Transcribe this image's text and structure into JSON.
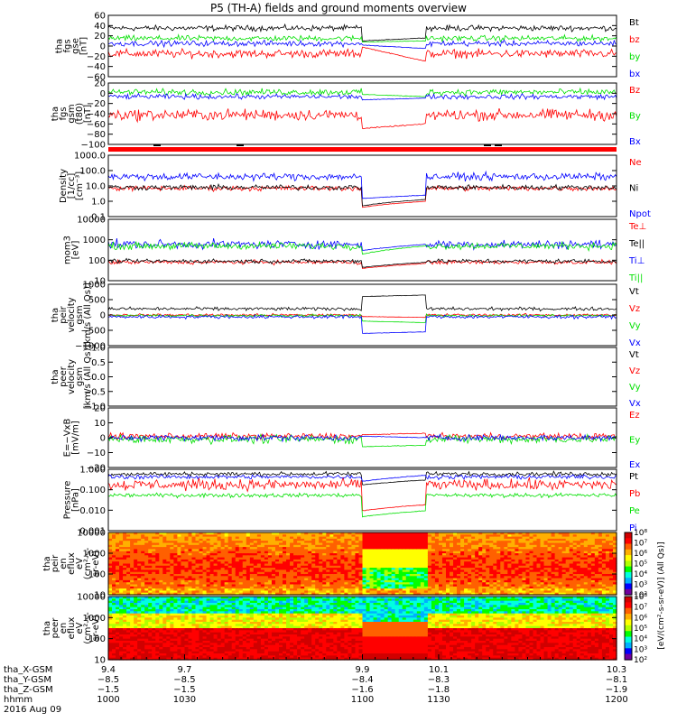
{
  "title": "P5 (TH-A) fields and ground moments overview",
  "date_label": "2016 Aug 09",
  "colors": {
    "black": "#000000",
    "red": "#ff0000",
    "green": "#00e000",
    "blue": "#0000ff"
  },
  "chart_data": [
    {
      "type": "line",
      "ylabel": [
        "tha",
        "fgs",
        "gse",
        "[nT]"
      ],
      "yticks": [
        "60",
        "40",
        "20",
        "0",
        "−20",
        "−40",
        "−60"
      ],
      "ylim": [
        -60,
        60
      ],
      "log": false,
      "series": [
        {
          "name": "Bt",
          "color": "black",
          "level": 35,
          "noise": 8,
          "calm": [
            10,
            16
          ]
        },
        {
          "name": "bz",
          "color": "red",
          "level": -15,
          "noise": 12,
          "calm": [
            -2,
            -30
          ]
        },
        {
          "name": "by",
          "color": "green",
          "level": 15,
          "noise": 8,
          "calm": [
            8,
            10
          ]
        },
        {
          "name": "bx",
          "color": "blue",
          "level": 5,
          "noise": 8,
          "calm": [
            2,
            -5
          ]
        }
      ]
    },
    {
      "type": "line",
      "ylabel": [
        "tha",
        "fgs",
        "gsm",
        "(t80)",
        "[nT]"
      ],
      "yticks": [
        "20",
        "0",
        "−20",
        "−40",
        "−60",
        "−80",
        "−100"
      ],
      "ylim": [
        -110,
        25
      ],
      "log": false,
      "series": [
        {
          "name": "Bz",
          "color": "red",
          "level": -45,
          "noise": 18,
          "calm": [
            -75,
            -65
          ]
        },
        {
          "name": "By",
          "color": "green",
          "level": 5,
          "noise": 10,
          "calm": [
            0,
            -5
          ]
        },
        {
          "name": "Bx",
          "color": "blue",
          "level": -5,
          "noise": 8,
          "calm": [
            -12,
            -8
          ]
        }
      ]
    },
    {
      "type": "line",
      "ylabel": [
        "Density",
        "[1/cc]",
        "[cm⁻³]"
      ],
      "yticks": [
        "1000.0",
        "100.0",
        "10.0",
        "1.0",
        "0.1"
      ],
      "ylim": [
        0.1,
        1000
      ],
      "log": true,
      "series": [
        {
          "name": "Ne",
          "color": "red",
          "level": 7,
          "noise": 0.25,
          "calm": [
            0.4,
            1.0
          ]
        },
        {
          "name": "Ni",
          "color": "black",
          "level": 8,
          "noise": 0.25,
          "calm": [
            0.5,
            1.3
          ]
        },
        {
          "name": "Npot",
          "color": "blue",
          "level": 40,
          "noise": 0.35,
          "calm": [
            1.5,
            2.5
          ]
        }
      ]
    },
    {
      "type": "line",
      "ylabel": [
        "mom3",
        "[eV]"
      ],
      "yticks": [
        "10000",
        "1000",
        "100",
        "10"
      ],
      "ylim": [
        10,
        10000
      ],
      "log": true,
      "series": [
        {
          "name": "Te⊥",
          "color": "red",
          "level": 80,
          "noise": 0.15,
          "calm": [
            40,
            70
          ]
        },
        {
          "name": "Te||",
          "color": "black",
          "level": 90,
          "noise": 0.15,
          "calm": [
            45,
            80
          ]
        },
        {
          "name": "Ti⊥",
          "color": "blue",
          "level": 600,
          "noise": 0.3,
          "calm": [
            300,
            600
          ]
        },
        {
          "name": "Ti||",
          "color": "green",
          "level": 500,
          "noise": 0.25,
          "calm": [
            200,
            500
          ]
        }
      ]
    },
    {
      "type": "line",
      "ylabel": [
        "tha",
        "peir",
        "velocity",
        "gsm",
        "[km/s (All Qs)]"
      ],
      "yticks": [
        "1000",
        "500",
        "0",
        "−500",
        "−1000"
      ],
      "ylim": [
        -1000,
        1000
      ],
      "log": false,
      "series": [
        {
          "name": "Vt",
          "color": "black",
          "level": 200,
          "noise": 80,
          "calm": [
            600,
            650
          ]
        },
        {
          "name": "Vz",
          "color": "red",
          "level": 0,
          "noise": 60,
          "calm": [
            -50,
            -80
          ]
        },
        {
          "name": "Vy",
          "color": "green",
          "level": -20,
          "noise": 60,
          "calm": [
            -200,
            -250
          ]
        },
        {
          "name": "Vx",
          "color": "blue",
          "level": -60,
          "noise": 80,
          "calm": [
            -600,
            -550
          ]
        }
      ]
    },
    {
      "type": "line",
      "ylabel": [
        "tha",
        "peer",
        "velocity",
        "gsm",
        "[km/s (All Qs)]"
      ],
      "yticks": [
        "1.0",
        "0.5",
        "0.0",
        "−0.5",
        "−1.0"
      ],
      "ylim": [
        -1,
        1
      ],
      "log": false,
      "empty": true,
      "series": [
        {
          "name": "Vt",
          "color": "black"
        },
        {
          "name": "Vz",
          "color": "red"
        },
        {
          "name": "Vy",
          "color": "green"
        },
        {
          "name": "Vx",
          "color": "blue"
        }
      ]
    },
    {
      "type": "line",
      "ylabel": [
        "E=−VxB",
        "[mV/m]"
      ],
      "yticks": [
        "20",
        "10",
        "0",
        "−10",
        "−20"
      ],
      "ylim": [
        -20,
        20
      ],
      "log": false,
      "series": [
        {
          "name": "Ez",
          "color": "red",
          "level": 1,
          "noise": 3,
          "calm": [
            2,
            3
          ]
        },
        {
          "name": "Ey",
          "color": "green",
          "level": -1,
          "noise": 4,
          "calm": [
            -6,
            -5
          ]
        },
        {
          "name": "Ex",
          "color": "blue",
          "level": 0,
          "noise": 3,
          "calm": [
            1,
            0
          ]
        }
      ]
    },
    {
      "type": "line",
      "ylabel": [
        "Pressure",
        "[nPa]"
      ],
      "yticks": [
        "1.000",
        "0.100",
        "0.010",
        "0.001"
      ],
      "ylim": [
        0.001,
        1.2
      ],
      "log": true,
      "series": [
        {
          "name": "Pt",
          "color": "black",
          "level": 0.7,
          "noise": 0.15,
          "calm": [
            0.2,
            0.35
          ]
        },
        {
          "name": "Pb",
          "color": "red",
          "level": 0.2,
          "noise": 0.4,
          "calm": [
            0.01,
            0.02
          ]
        },
        {
          "name": "Pe",
          "color": "green",
          "level": 0.06,
          "noise": 0.15,
          "calm": [
            0.005,
            0.01
          ]
        },
        {
          "name": "Pi",
          "color": "blue",
          "level": 0.5,
          "noise": 0.15,
          "calm": [
            0.3,
            0.6
          ]
        }
      ]
    },
    {
      "type": "heatmap",
      "ylabel": [
        "tha",
        "peir",
        "en",
        "eflux",
        "eV",
        "(cm²-s-",
        "sr-eV)"
      ],
      "yticks": [
        "10000",
        "1000",
        "100",
        "10"
      ],
      "ylim": [
        10,
        30000
      ],
      "log": true,
      "variant": "ion"
    },
    {
      "type": "heatmap",
      "ylabel": [
        "tha",
        "peer",
        "en",
        "eflux",
        "eV",
        "(cm²-s-",
        "sr-eV)"
      ],
      "yticks": [
        "10000",
        "1000",
        "100",
        "10"
      ],
      "ylim": [
        10,
        30000
      ],
      "log": true,
      "variant": "electron"
    }
  ],
  "colorbars": [
    {
      "ticks": [
        "10⁸",
        "10⁷",
        "10⁶",
        "10⁵",
        "10⁴",
        "10³",
        "10²"
      ]
    },
    {
      "ticks": [
        "10⁸",
        "10⁷",
        "10⁶",
        "10⁵",
        "10⁴",
        "10³",
        "10²"
      ]
    }
  ],
  "colorbar_label": "[eV/(cm²-s-sr-eV)] (All Qs)]",
  "x_axis": {
    "xlim": [
      1000,
      1200
    ],
    "row_labels": [
      "tha_X-GSM",
      "tha_Y-GSM",
      "tha_Z-GSM",
      "hhmm"
    ],
    "ticks": [
      {
        "t": 1000,
        "x": "9.4",
        "y": "−8.5",
        "z": "−1.5",
        "hhmm": "1000"
      },
      {
        "t": 1030,
        "x": "9.7",
        "y": "−8.5",
        "z": "−1.5",
        "hhmm": "1030"
      },
      {
        "t": 1100,
        "x": "9.9",
        "y": "−8.4",
        "z": "−1.6",
        "hhmm": "1100"
      },
      {
        "t": 1130,
        "x": "10.1",
        "y": "−8.3",
        "z": "−1.8",
        "hhmm": "1130"
      },
      {
        "t": 1200,
        "x": "10.3",
        "y": "−8.1",
        "z": "−1.9",
        "hhmm": "1200"
      }
    ],
    "calm_interval": [
      1100,
      1125
    ]
  }
}
